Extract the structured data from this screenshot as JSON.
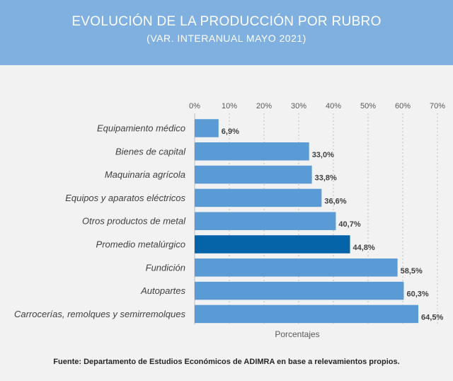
{
  "header": {
    "title": "EVOLUCIÓN DE LA PRODUCCIÓN POR RUBRO",
    "subtitle": "(VAR. INTERANUAL MAYO 2021)"
  },
  "source": "Fuente: Departamento de Estudios Económicos de ADIMRA en base a relevamientos propios.",
  "chart_data": {
    "type": "bar",
    "orientation": "horizontal",
    "categories": [
      "Equipamiento médico",
      "Bienes de capital",
      "Maquinaria agrícola",
      "Equipos y aparatos eléctricos",
      "Otros productos de metal",
      "Promedio metalúrgico",
      "Fundición",
      "Autopartes",
      "Carrocerías, remolques y semirremolques"
    ],
    "values": [
      6.9,
      33.0,
      33.8,
      36.6,
      40.7,
      44.8,
      58.5,
      60.3,
      64.5
    ],
    "value_labels": [
      "6,9%",
      "33,0%",
      "33,8%",
      "36,6%",
      "40,7%",
      "44,8%",
      "58,5%",
      "60,3%",
      "64,5%"
    ],
    "xlabel": "Porcentajes",
    "xlim": [
      0,
      70
    ],
    "xticks": [
      0,
      10,
      20,
      30,
      40,
      50,
      60,
      70
    ],
    "xtick_labels": [
      "0%",
      "10%",
      "20%",
      "30%",
      "40%",
      "50%",
      "60%",
      "70%"
    ],
    "tick_position": "top",
    "grid": "vertical-dashed",
    "colors": {
      "bar": "#5b9bd5",
      "highlight_bar": "#0563a8",
      "highlight_category": "Promedio metalúrgico",
      "header": "#7fb0e0",
      "background": "#f2f2f2"
    }
  }
}
